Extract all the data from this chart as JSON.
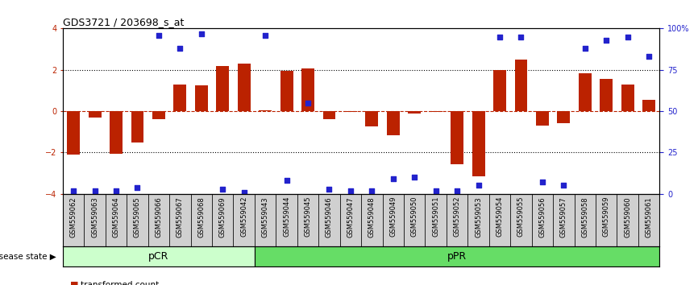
{
  "title": "GDS3721 / 203698_s_at",
  "samples": [
    "GSM559062",
    "GSM559063",
    "GSM559064",
    "GSM559065",
    "GSM559066",
    "GSM559067",
    "GSM559068",
    "GSM559069",
    "GSM559042",
    "GSM559043",
    "GSM559044",
    "GSM559045",
    "GSM559046",
    "GSM559047",
    "GSM559048",
    "GSM559049",
    "GSM559050",
    "GSM559051",
    "GSM559052",
    "GSM559053",
    "GSM559054",
    "GSM559055",
    "GSM559056",
    "GSM559057",
    "GSM559058",
    "GSM559059",
    "GSM559060",
    "GSM559061"
  ],
  "transformed_count": [
    -2.1,
    -0.3,
    -2.05,
    -1.5,
    -0.4,
    1.3,
    1.25,
    2.2,
    2.3,
    0.05,
    1.95,
    2.05,
    -0.4,
    -0.05,
    -0.75,
    -1.15,
    -0.1,
    -0.05,
    -2.55,
    -3.15,
    2.0,
    2.5,
    -0.7,
    -0.6,
    1.85,
    1.55,
    1.3,
    0.55
  ],
  "percentile_rank": [
    2,
    2,
    2,
    4,
    96,
    88,
    97,
    3,
    1,
    96,
    8,
    55,
    3,
    2,
    2,
    9,
    10,
    2,
    2,
    5,
    95,
    95,
    7,
    5,
    88,
    93,
    95,
    83
  ],
  "pCR_count": 9,
  "pPR_count": 19,
  "group_labels": [
    "pCR",
    "pPR"
  ],
  "bar_color": "#BB2200",
  "dot_color": "#2222CC",
  "background_color": "#FFFFFF",
  "ylim": [
    -4,
    4
  ],
  "y2lim": [
    0,
    100
  ],
  "yticks": [
    -4,
    -2,
    0,
    2,
    4
  ],
  "y2ticks": [
    0,
    25,
    50,
    75,
    100
  ],
  "hline_dotted": [
    -2,
    2
  ],
  "hline_dashed": [
    0
  ],
  "pCR_color": "#CCFFCC",
  "pPR_color": "#66DD66",
  "tick_label_fontsize": 7,
  "bar_fontsize": 7,
  "title_fontsize": 9,
  "sample_fontsize": 6,
  "legend_fontsize": 7.5
}
